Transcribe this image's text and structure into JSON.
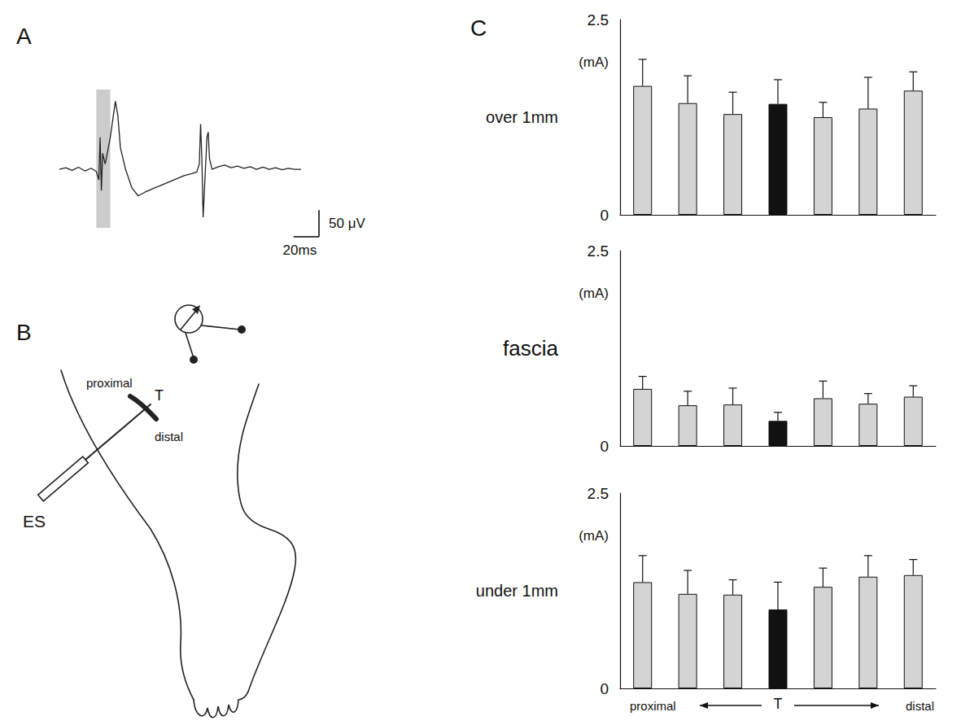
{
  "panel_labels": [
    "A",
    "B",
    "C"
  ],
  "diagram": {
    "proximal": "proximal",
    "distal": "distal",
    "target": "T",
    "stimulator": "ES"
  },
  "chart_data": [
    {
      "type": "line",
      "x": [
        0,
        5,
        10,
        15,
        20,
        25,
        29,
        31,
        32,
        33,
        34,
        36,
        40,
        44,
        46,
        48,
        52,
        57,
        62,
        68,
        75,
        82,
        90,
        98,
        104,
        108,
        110,
        111,
        112,
        113,
        114,
        116,
        117,
        118,
        120,
        125,
        130,
        135,
        140,
        145,
        150,
        155,
        160,
        165,
        170,
        175,
        180,
        185,
        190
      ],
      "values": [
        0,
        3,
        -2,
        4,
        -3,
        2,
        -4,
        -20,
        60,
        -40,
        30,
        10,
        60,
        128,
        100,
        40,
        0,
        -35,
        -50,
        -42,
        -35,
        -28,
        -20,
        -12,
        -8,
        -5,
        10,
        85,
        20,
        -90,
        -40,
        60,
        70,
        20,
        0,
        5,
        8,
        3,
        6,
        2,
        5,
        0,
        4,
        0,
        3,
        -1,
        2,
        0,
        0
      ],
      "xlim": [
        0,
        190
      ],
      "ylim": [
        -110,
        150
      ],
      "tick_labels": false,
      "color": "#222222",
      "stimulus": [
        29,
        40
      ],
      "scale_bar": {
        "x": {
          "value": 20,
          "label": "20ms"
        },
        "y": {
          "value": 50,
          "label": "50 μV"
        }
      }
    },
    {
      "type": "bar",
      "title": "over 1mm",
      "ylabel": "(mA)",
      "categories": [
        null,
        null,
        null,
        "T",
        null,
        null,
        null
      ],
      "values": [
        1.65,
        1.43,
        1.29,
        1.42,
        1.25,
        1.36,
        1.59
      ],
      "errors": [
        0.34,
        0.35,
        0.28,
        0.31,
        0.19,
        0.4,
        0.24
      ],
      "colors": [
        "#d4d4d4",
        "#d4d4d4",
        "#d4d4d4",
        "#111111",
        "#d4d4d4",
        "#d4d4d4",
        "#d4d4d4"
      ],
      "ylim": [
        0,
        2.5
      ],
      "yticks": [
        0,
        2.5
      ],
      "tick_labels": "y"
    },
    {
      "type": "bar",
      "title": "fascia",
      "ylabel": "(mA)",
      "categories": [
        null,
        null,
        null,
        "T",
        null,
        null,
        null
      ],
      "values": [
        0.73,
        0.52,
        0.53,
        0.32,
        0.61,
        0.54,
        0.63
      ],
      "errors": [
        0.16,
        0.18,
        0.21,
        0.11,
        0.22,
        0.13,
        0.14
      ],
      "colors": [
        "#d4d4d4",
        "#d4d4d4",
        "#d4d4d4",
        "#111111",
        "#d4d4d4",
        "#d4d4d4",
        "#d4d4d4"
      ],
      "ylim": [
        0,
        2.5
      ],
      "yticks": [
        0,
        2.5
      ],
      "tick_labels": "y"
    },
    {
      "type": "bar",
      "title": "under 1mm",
      "ylabel": "(mA)",
      "categories": [
        null,
        null,
        null,
        "T",
        null,
        null,
        null
      ],
      "values": [
        1.36,
        1.21,
        1.2,
        1.01,
        1.3,
        1.43,
        1.45
      ],
      "errors": [
        0.34,
        0.3,
        0.19,
        0.35,
        0.24,
        0.27,
        0.2
      ],
      "colors": [
        "#d4d4d4",
        "#d4d4d4",
        "#d4d4d4",
        "#111111",
        "#d4d4d4",
        "#d4d4d4",
        "#d4d4d4"
      ],
      "ylim": [
        0,
        2.5
      ],
      "yticks": [
        0,
        2.5
      ],
      "annotations": [
        "proximal",
        "distal"
      ]
    }
  ]
}
